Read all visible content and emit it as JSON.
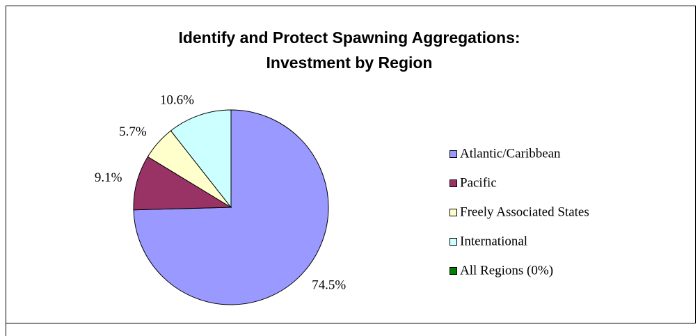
{
  "chart_data": {
    "type": "pie",
    "title": [
      "Identify and Protect Spawning Aggregations:",
      "Investment by Region"
    ],
    "categories": [
      "Atlantic/Caribbean",
      "Pacific",
      "Freely Associated States",
      "International",
      "All Regions (0%)"
    ],
    "values": [
      74.5,
      9.1,
      5.7,
      10.6,
      0
    ],
    "value_labels": [
      "74.5%",
      "9.1%",
      "5.7%",
      "10.6%",
      null
    ],
    "colors": [
      "#9999ff",
      "#993366",
      "#ffffcc",
      "#ccffff",
      "#008000"
    ],
    "legend": "right"
  }
}
